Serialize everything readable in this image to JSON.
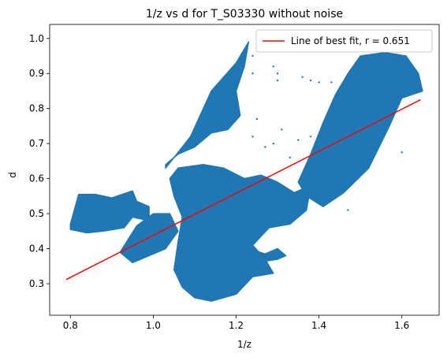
{
  "chart_data": {
    "type": "scatter",
    "title": "1/z vs d for T_S03330 without noise",
    "xlabel": "1/z",
    "ylabel": "d",
    "xlim": [
      0.75,
      1.69
    ],
    "ylim": [
      0.21,
      1.04
    ],
    "xticks": [
      "0.8",
      "1.0",
      "1.2",
      "1.4",
      "1.6"
    ],
    "yticks": [
      "0.3",
      "0.4",
      "0.5",
      "0.6",
      "0.7",
      "0.8",
      "0.9",
      "1.0"
    ],
    "grid": false,
    "legend": {
      "position": "upper-right",
      "entries": [
        "Line of best fit, r = 0.651"
      ]
    },
    "colors": {
      "points": "#1f77b4",
      "fit": "#ff0000"
    },
    "series": [
      {
        "kind": "scatter",
        "regions": [
          {
            "polygon": [
              [
                0.8,
                0.47
              ],
              [
                0.82,
                0.555
              ],
              [
                0.86,
                0.555
              ],
              [
                0.9,
                0.545
              ],
              [
                0.95,
                0.565
              ],
              [
                0.96,
                0.535
              ],
              [
                0.99,
                0.52
              ],
              [
                0.99,
                0.48
              ],
              [
                0.95,
                0.49
              ],
              [
                0.93,
                0.46
              ],
              [
                0.88,
                0.45
              ],
              [
                0.84,
                0.445
              ],
              [
                0.8,
                0.455
              ]
            ]
          },
          {
            "polygon": [
              [
                0.92,
                0.39
              ],
              [
                0.96,
                0.465
              ],
              [
                1.0,
                0.5
              ],
              [
                1.04,
                0.5
              ],
              [
                1.06,
                0.45
              ],
              [
                1.03,
                0.4
              ],
              [
                0.99,
                0.38
              ],
              [
                0.95,
                0.36
              ]
            ]
          },
          {
            "polygon": [
              [
                1.03,
                0.63
              ],
              [
                1.09,
                0.72
              ],
              [
                1.14,
                0.85
              ],
              [
                1.2,
                0.93
              ],
              [
                1.23,
                0.99
              ],
              [
                1.22,
                0.92
              ],
              [
                1.2,
                0.85
              ],
              [
                1.21,
                0.78
              ],
              [
                1.18,
                0.74
              ],
              [
                1.14,
                0.73
              ],
              [
                1.1,
                0.69
              ],
              [
                1.06,
                0.67
              ],
              [
                1.03,
                0.64
              ]
            ]
          },
          {
            "polygon": [
              [
                1.07,
                0.49
              ],
              [
                1.05,
                0.55
              ],
              [
                1.04,
                0.6
              ],
              [
                1.06,
                0.63
              ],
              [
                1.12,
                0.64
              ],
              [
                1.17,
                0.63
              ],
              [
                1.22,
                0.6
              ],
              [
                1.26,
                0.61
              ],
              [
                1.3,
                0.59
              ],
              [
                1.34,
                0.56
              ],
              [
                1.38,
                0.58
              ],
              [
                1.37,
                0.51
              ],
              [
                1.33,
                0.47
              ],
              [
                1.28,
                0.46
              ],
              [
                1.24,
                0.41
              ],
              [
                1.27,
                0.37
              ],
              [
                1.29,
                0.33
              ],
              [
                1.24,
                0.32
              ],
              [
                1.2,
                0.27
              ],
              [
                1.14,
                0.25
              ],
              [
                1.1,
                0.26
              ],
              [
                1.07,
                0.29
              ],
              [
                1.05,
                0.34
              ],
              [
                1.06,
                0.42
              ]
            ]
          },
          {
            "polygon": [
              [
                1.35,
                0.59
              ],
              [
                1.38,
                0.67
              ],
              [
                1.41,
                0.76
              ],
              [
                1.44,
                0.84
              ],
              [
                1.47,
                0.9
              ],
              [
                1.5,
                0.95
              ],
              [
                1.56,
                0.96
              ],
              [
                1.61,
                0.95
              ],
              [
                1.64,
                0.9
              ],
              [
                1.65,
                0.85
              ],
              [
                1.6,
                0.83
              ],
              [
                1.57,
                0.75
              ],
              [
                1.52,
                0.63
              ],
              [
                1.46,
                0.56
              ],
              [
                1.41,
                0.52
              ],
              [
                1.37,
                0.55
              ]
            ]
          },
          {
            "polygon": [
              [
                1.21,
                0.38
              ],
              [
                1.23,
                0.4
              ],
              [
                1.27,
                0.385
              ],
              [
                1.3,
                0.4
              ],
              [
                1.32,
                0.38
              ],
              [
                1.3,
                0.37
              ],
              [
                1.25,
                0.36
              ]
            ]
          }
        ],
        "points": [
          {
            "x": 1.24,
            "y": 0.95
          },
          {
            "x": 1.29,
            "y": 0.92
          },
          {
            "x": 1.3,
            "y": 0.9
          },
          {
            "x": 1.3,
            "y": 0.88
          },
          {
            "x": 1.24,
            "y": 0.9
          },
          {
            "x": 1.36,
            "y": 0.89
          },
          {
            "x": 1.38,
            "y": 0.88
          },
          {
            "x": 1.4,
            "y": 0.875
          },
          {
            "x": 1.43,
            "y": 0.875
          },
          {
            "x": 1.47,
            "y": 0.88
          },
          {
            "x": 1.25,
            "y": 0.77
          },
          {
            "x": 1.31,
            "y": 0.74
          },
          {
            "x": 1.35,
            "y": 0.71
          },
          {
            "x": 1.29,
            "y": 0.7
          },
          {
            "x": 1.24,
            "y": 0.72
          },
          {
            "x": 1.38,
            "y": 0.72
          },
          {
            "x": 1.6,
            "y": 0.675
          },
          {
            "x": 1.47,
            "y": 0.51
          },
          {
            "x": 1.33,
            "y": 0.66
          },
          {
            "x": 1.27,
            "y": 0.69
          }
        ]
      },
      {
        "kind": "line",
        "name": "Line of best fit, r = 0.651",
        "x": [
          0.79,
          1.645
        ],
        "y": [
          0.312,
          0.825
        ]
      }
    ]
  }
}
